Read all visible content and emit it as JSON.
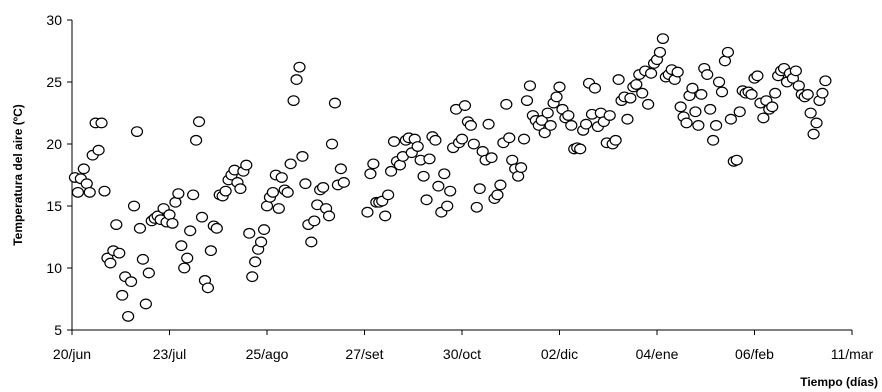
{
  "chart_data": {
    "type": "scatter",
    "title": "",
    "xlabel": "Tiempo (días)",
    "ylabel": "Temperatura del aire (ºC)",
    "ylim": [
      5,
      30
    ],
    "yticks": [
      5,
      10,
      15,
      20,
      25,
      30
    ],
    "xlim": [
      0,
      264
    ],
    "xticks": [
      {
        "value": 0,
        "label": "20/jun"
      },
      {
        "value": 33,
        "label": "23/jul"
      },
      {
        "value": 66,
        "label": "25/ago"
      },
      {
        "value": 99,
        "label": "27/set"
      },
      {
        "value": 132,
        "label": "30/oct"
      },
      {
        "value": 165,
        "label": "02/dic"
      },
      {
        "value": 198,
        "label": "04/ene"
      },
      {
        "value": 231,
        "label": "06/feb"
      },
      {
        "value": 264,
        "label": "11/mar"
      }
    ],
    "grid": false,
    "marker": "open-circle",
    "series": [
      {
        "points": [
          [
            1,
            17.3
          ],
          [
            2,
            16.1
          ],
          [
            3,
            17.2
          ],
          [
            4,
            18.0
          ],
          [
            5,
            16.8
          ],
          [
            6,
            16.1
          ],
          [
            7,
            19.1
          ],
          [
            8,
            21.7
          ],
          [
            9,
            19.5
          ],
          [
            10,
            21.7
          ],
          [
            11,
            16.2
          ],
          [
            12,
            10.8
          ],
          [
            13,
            10.4
          ],
          [
            14,
            11.4
          ],
          [
            15,
            13.5
          ],
          [
            16,
            11.2
          ],
          [
            17,
            7.8
          ],
          [
            18,
            9.3
          ],
          [
            19,
            6.1
          ],
          [
            20,
            8.9
          ],
          [
            21,
            15.0
          ],
          [
            22,
            21.0
          ],
          [
            23,
            13.2
          ],
          [
            24,
            10.7
          ],
          [
            25,
            7.1
          ],
          [
            26,
            9.6
          ],
          [
            27,
            13.8
          ],
          [
            28,
            14.0
          ],
          [
            29,
            14.2
          ],
          [
            30,
            13.9
          ],
          [
            31,
            14.8
          ],
          [
            32,
            13.7
          ],
          [
            33,
            14.3
          ],
          [
            34,
            13.6
          ],
          [
            35,
            15.3
          ],
          [
            36,
            16.0
          ],
          [
            37,
            11.8
          ],
          [
            38,
            10.0
          ],
          [
            39,
            10.8
          ],
          [
            40,
            13.0
          ],
          [
            41,
            15.9
          ],
          [
            42,
            20.3
          ],
          [
            43,
            21.8
          ],
          [
            44,
            14.1
          ],
          [
            45,
            9.0
          ],
          [
            46,
            8.4
          ],
          [
            47,
            11.4
          ],
          [
            48,
            13.4
          ],
          [
            49,
            13.2
          ],
          [
            50,
            15.9
          ],
          [
            51,
            15.8
          ],
          [
            52,
            16.2
          ],
          [
            53,
            17.1
          ],
          [
            54,
            17.5
          ],
          [
            55,
            17.9
          ],
          [
            56,
            16.9
          ],
          [
            57,
            16.4
          ],
          [
            58,
            17.8
          ],
          [
            59,
            18.3
          ],
          [
            60,
            12.8
          ],
          [
            61,
            9.3
          ],
          [
            62,
            10.5
          ],
          [
            63,
            11.5
          ],
          [
            64,
            12.1
          ],
          [
            65,
            13.1
          ],
          [
            66,
            15.0
          ],
          [
            67,
            15.7
          ],
          [
            68,
            16.1
          ],
          [
            69,
            17.5
          ],
          [
            70,
            14.8
          ],
          [
            71,
            17.3
          ],
          [
            72,
            16.3
          ],
          [
            73,
            16.1
          ],
          [
            74,
            18.4
          ],
          [
            75,
            23.5
          ],
          [
            76,
            25.2
          ],
          [
            77,
            26.2
          ],
          [
            78,
            19.0
          ],
          [
            79,
            16.8
          ],
          [
            80,
            13.5
          ],
          [
            81,
            12.1
          ],
          [
            82,
            13.8
          ],
          [
            83,
            15.1
          ],
          [
            84,
            16.3
          ],
          [
            85,
            16.5
          ],
          [
            86,
            14.8
          ],
          [
            87,
            14.2
          ],
          [
            88,
            20.0
          ],
          [
            89,
            23.3
          ],
          [
            90,
            16.7
          ],
          [
            91,
            18.0
          ],
          [
            92,
            16.9
          ],
          [
            100,
            14.5
          ],
          [
            101,
            17.6
          ],
          [
            102,
            18.4
          ],
          [
            103,
            15.3
          ],
          [
            104,
            15.3
          ],
          [
            105,
            15.4
          ],
          [
            106,
            14.2
          ],
          [
            107,
            15.9
          ],
          [
            108,
            17.8
          ],
          [
            109,
            20.2
          ],
          [
            110,
            18.6
          ],
          [
            111,
            18.3
          ],
          [
            112,
            19.0
          ],
          [
            113,
            20.3
          ],
          [
            114,
            20.5
          ],
          [
            115,
            19.3
          ],
          [
            116,
            20.4
          ],
          [
            117,
            19.8
          ],
          [
            118,
            18.7
          ],
          [
            119,
            17.4
          ],
          [
            120,
            15.5
          ],
          [
            121,
            18.8
          ],
          [
            122,
            20.6
          ],
          [
            123,
            20.3
          ],
          [
            124,
            16.6
          ],
          [
            125,
            14.5
          ],
          [
            126,
            17.6
          ],
          [
            127,
            15.0
          ],
          [
            128,
            16.2
          ],
          [
            129,
            19.7
          ],
          [
            130,
            22.8
          ],
          [
            131,
            20.1
          ],
          [
            132,
            20.4
          ],
          [
            133,
            23.1
          ],
          [
            134,
            21.8
          ],
          [
            135,
            21.5
          ],
          [
            136,
            20.0
          ],
          [
            137,
            14.9
          ],
          [
            138,
            16.4
          ],
          [
            139,
            19.4
          ],
          [
            140,
            18.7
          ],
          [
            141,
            21.6
          ],
          [
            142,
            18.9
          ],
          [
            143,
            15.6
          ],
          [
            144,
            15.9
          ],
          [
            145,
            16.7
          ],
          [
            146,
            20.1
          ],
          [
            147,
            23.2
          ],
          [
            148,
            20.5
          ],
          [
            149,
            18.7
          ],
          [
            150,
            18.0
          ],
          [
            151,
            17.4
          ],
          [
            152,
            18.1
          ],
          [
            153,
            20.4
          ],
          [
            154,
            23.5
          ],
          [
            155,
            24.7
          ],
          [
            156,
            22.3
          ],
          [
            157,
            21.9
          ],
          [
            158,
            21.5
          ],
          [
            159,
            21.9
          ],
          [
            160,
            20.9
          ],
          [
            161,
            22.5
          ],
          [
            162,
            21.5
          ],
          [
            163,
            23.3
          ],
          [
            164,
            23.8
          ],
          [
            165,
            24.6
          ],
          [
            166,
            22.8
          ],
          [
            167,
            22.1
          ],
          [
            168,
            22.3
          ],
          [
            169,
            21.5
          ],
          [
            170,
            19.6
          ],
          [
            171,
            19.7
          ],
          [
            172,
            19.6
          ],
          [
            173,
            21.1
          ],
          [
            174,
            21.6
          ],
          [
            175,
            24.9
          ],
          [
            176,
            22.4
          ],
          [
            177,
            24.5
          ],
          [
            178,
            21.4
          ],
          [
            179,
            22.5
          ],
          [
            180,
            21.8
          ],
          [
            181,
            20.1
          ],
          [
            182,
            22.3
          ],
          [
            183,
            20.0
          ],
          [
            184,
            20.3
          ],
          [
            185,
            25.2
          ],
          [
            186,
            23.5
          ],
          [
            187,
            23.8
          ],
          [
            188,
            22.0
          ],
          [
            189,
            23.7
          ],
          [
            190,
            24.6
          ],
          [
            191,
            24.8
          ],
          [
            192,
            25.6
          ],
          [
            193,
            24.1
          ],
          [
            194,
            25.9
          ],
          [
            195,
            23.2
          ],
          [
            196,
            25.7
          ],
          [
            197,
            26.5
          ],
          [
            198,
            26.8
          ],
          [
            199,
            27.4
          ],
          [
            200,
            28.5
          ],
          [
            201,
            25.4
          ],
          [
            202,
            25.6
          ],
          [
            203,
            26.0
          ],
          [
            204,
            25.2
          ],
          [
            205,
            25.8
          ],
          [
            206,
            23.0
          ],
          [
            207,
            22.2
          ],
          [
            208,
            21.7
          ],
          [
            209,
            23.9
          ],
          [
            210,
            24.5
          ],
          [
            211,
            22.6
          ],
          [
            212,
            21.5
          ],
          [
            213,
            24.0
          ],
          [
            214,
            26.1
          ],
          [
            215,
            25.6
          ],
          [
            216,
            22.8
          ],
          [
            217,
            20.3
          ],
          [
            218,
            21.5
          ],
          [
            219,
            25.0
          ],
          [
            220,
            24.2
          ],
          [
            221,
            26.7
          ],
          [
            222,
            27.4
          ],
          [
            223,
            22.0
          ],
          [
            224,
            18.6
          ],
          [
            225,
            18.7
          ],
          [
            226,
            22.6
          ],
          [
            227,
            24.3
          ],
          [
            228,
            24.1
          ],
          [
            229,
            24.2
          ],
          [
            230,
            24.0
          ],
          [
            231,
            25.3
          ],
          [
            232,
            25.5
          ],
          [
            233,
            23.3
          ],
          [
            234,
            22.1
          ],
          [
            235,
            23.5
          ],
          [
            236,
            22.8
          ],
          [
            237,
            23.0
          ],
          [
            238,
            24.1
          ],
          [
            239,
            25.5
          ],
          [
            240,
            25.9
          ],
          [
            241,
            26.1
          ],
          [
            242,
            25.0
          ],
          [
            243,
            25.7
          ],
          [
            244,
            25.3
          ],
          [
            245,
            25.9
          ],
          [
            246,
            24.7
          ],
          [
            247,
            24.0
          ],
          [
            248,
            23.8
          ],
          [
            249,
            24.0
          ],
          [
            250,
            22.5
          ],
          [
            251,
            20.8
          ],
          [
            252,
            21.7
          ],
          [
            253,
            23.5
          ],
          [
            254,
            24.1
          ],
          [
            255,
            25.1
          ]
        ]
      }
    ]
  }
}
